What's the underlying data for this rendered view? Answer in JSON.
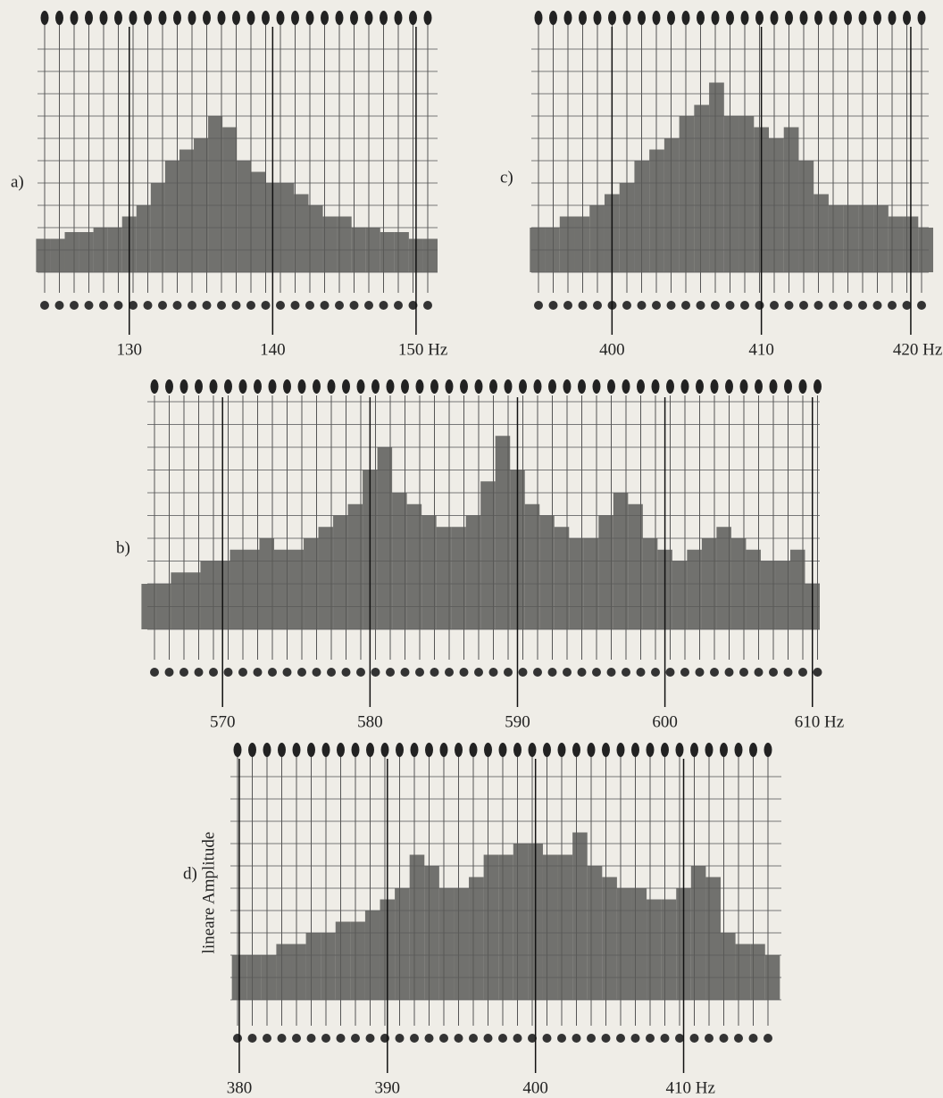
{
  "chart_data": [
    {
      "type": "bar",
      "label": "a)",
      "color": "#5b5b58",
      "x": [
        124,
        125,
        126,
        127,
        128,
        129,
        130,
        131,
        132,
        133,
        134,
        135,
        136,
        137,
        138,
        139,
        140,
        141,
        142,
        143,
        144,
        145,
        146,
        147,
        148,
        149,
        150,
        151
      ],
      "values": [
        1.5,
        1.5,
        1.8,
        1.8,
        2,
        2,
        2.5,
        3,
        4,
        5,
        5.5,
        6,
        7,
        6.5,
        5,
        4.5,
        4,
        4,
        3.5,
        3,
        2.5,
        2.5,
        2,
        2,
        1.8,
        1.8,
        1.5,
        1.5
      ],
      "xlim": [
        123.6,
        151.5
      ],
      "ylim": [
        0,
        10
      ],
      "xticks": [
        130,
        140,
        {
          "value": 150,
          "label": "150 Hz"
        }
      ]
    },
    {
      "type": "bar",
      "label": "b)",
      "color": "#5b5b58",
      "x": [
        565,
        566,
        567,
        568,
        569,
        570,
        571,
        572,
        573,
        574,
        575,
        576,
        577,
        578,
        579,
        580,
        581,
        582,
        583,
        584,
        585,
        586,
        587,
        588,
        589,
        590,
        591,
        592,
        593,
        594,
        595,
        596,
        597,
        598,
        599,
        600,
        601,
        602,
        603,
        604,
        605,
        606,
        607,
        608,
        609,
        610
      ],
      "values": [
        2,
        2,
        2.5,
        2.5,
        3,
        3,
        3.5,
        3.5,
        4,
        3.5,
        3.5,
        4,
        4.5,
        5,
        5.5,
        7,
        8,
        6,
        5.5,
        5,
        4.5,
        4.5,
        5,
        6.5,
        8.5,
        7,
        5.5,
        5,
        4.5,
        4,
        4,
        5,
        6,
        5.5,
        4,
        3.5,
        3,
        3.5,
        4,
        4.5,
        4,
        3.5,
        3,
        3,
        3.5,
        2
      ],
      "xlim": [
        564.9,
        610.5
      ],
      "ylim": [
        0,
        10
      ],
      "xticks": [
        570,
        580,
        590,
        600,
        {
          "value": 610,
          "label": "610 Hz"
        }
      ]
    },
    {
      "type": "bar",
      "label": "c)",
      "color": "#5b5b58",
      "x": [
        395,
        396,
        397,
        398,
        399,
        400,
        401,
        402,
        403,
        404,
        405,
        406,
        407,
        408,
        409,
        410,
        411,
        412,
        413,
        414,
        415,
        416,
        417,
        418,
        419,
        420,
        421
      ],
      "values": [
        2,
        2,
        2.5,
        2.5,
        3,
        3.5,
        4,
        5,
        5.5,
        6,
        7,
        7.5,
        8.5,
        7,
        7,
        6.5,
        6,
        6.5,
        5,
        3.5,
        3,
        3,
        3,
        3,
        2.5,
        2.5,
        2
      ],
      "xlim": [
        394.6,
        421.2
      ],
      "ylim": [
        0,
        10
      ],
      "xticks": [
        400,
        410,
        {
          "value": 420,
          "label": "420 Hz"
        }
      ]
    },
    {
      "type": "bar",
      "label": "d)",
      "color": "#5b5b58",
      "ylabel": "lineare Amplitude",
      "x": [
        380,
        381,
        382,
        383,
        384,
        385,
        386,
        387,
        388,
        389,
        390,
        391,
        392,
        393,
        394,
        395,
        396,
        397,
        398,
        399,
        400,
        401,
        402,
        403,
        404,
        405,
        406,
        407,
        408,
        409,
        410,
        411,
        412,
        413,
        414,
        415,
        416
      ],
      "values": [
        2,
        2,
        2,
        2.5,
        2.5,
        3,
        3,
        3.5,
        3.5,
        4,
        4.5,
        5,
        6.5,
        6,
        5,
        5,
        5.5,
        6.5,
        6.5,
        7,
        7,
        6.5,
        6.5,
        7.5,
        6,
        5.5,
        5,
        5,
        4.5,
        4.5,
        5,
        6,
        5.5,
        3,
        2.5,
        2.5,
        2
      ],
      "xlim": [
        379.4,
        416.6
      ],
      "ylim": [
        0,
        10
      ],
      "xticks": [
        380,
        390,
        400,
        {
          "value": 410,
          "label": "410 Hz"
        }
      ]
    }
  ]
}
